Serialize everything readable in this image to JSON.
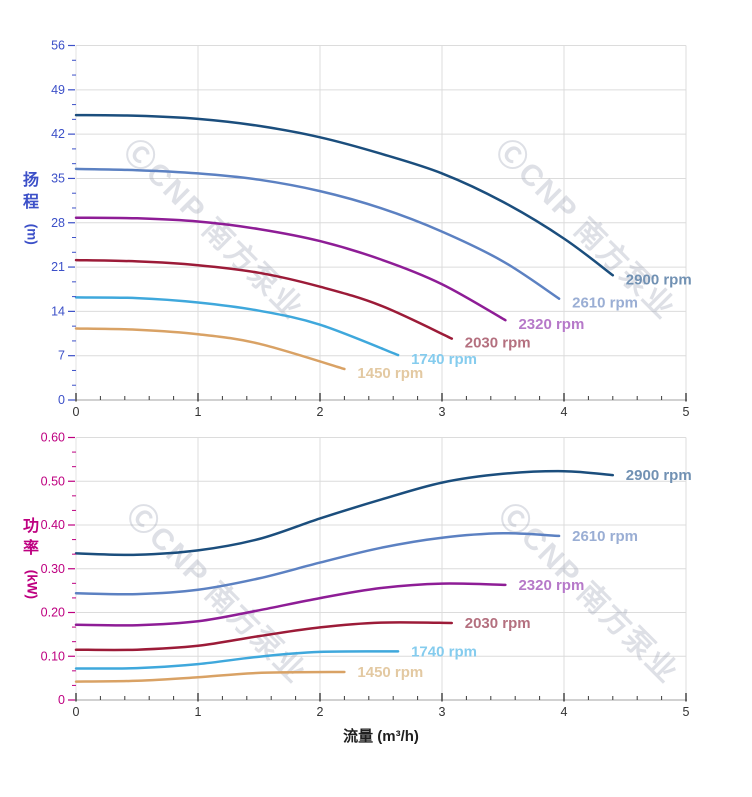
{
  "page": {
    "background": "#ffffff"
  },
  "watermark": {
    "text": "ⒸCNP 南方泵业",
    "color": "rgba(156,162,180,0.33)"
  },
  "x_axis": {
    "title": "流量 (m³/h)",
    "min": 0,
    "max": 5,
    "tick_labels": [
      "0",
      "1",
      "2",
      "3",
      "4",
      "5"
    ],
    "tick_values": [
      0,
      1,
      2,
      3,
      4,
      5
    ],
    "minor_step": 0.2,
    "label_color": "#333333",
    "title_color": "#1f1f1f"
  },
  "chart_data": [
    {
      "type": "line",
      "title": "",
      "ylabel": "扬程 (m)",
      "ylabel_chars": [
        "扬",
        "程"
      ],
      "ylabel_unit": "(m)",
      "xlabel": "流量 (m³/h)",
      "axis_color": "#3c50c8",
      "ylim": [
        0,
        56
      ],
      "ytick_values": [
        0,
        7,
        14,
        21,
        28,
        35,
        42,
        49,
        56
      ],
      "ytick_labels": [
        "0",
        "7",
        "14",
        "21",
        "28",
        "35",
        "42",
        "49",
        "56"
      ],
      "xlim": [
        0,
        5
      ],
      "grid": true,
      "legend_position": "curve-end",
      "series": [
        {
          "name": "2900 rpm",
          "rpm": 2900,
          "color": "#1b4e7d",
          "label_color": "#7191b3",
          "points": [
            [
              0,
              45
            ],
            [
              0.5,
              44.9
            ],
            [
              1,
              44.4
            ],
            [
              1.5,
              43.3
            ],
            [
              2,
              41.5
            ],
            [
              2.5,
              38.9
            ],
            [
              3,
              35.8
            ],
            [
              3.5,
              31.3
            ],
            [
              4,
              25.5
            ],
            [
              4.4,
              19.7
            ]
          ]
        },
        {
          "name": "2610 rpm",
          "rpm": 2610,
          "color": "#5c81c2",
          "label_color": "#9aaed4",
          "points": [
            [
              0,
              36.5
            ],
            [
              0.5,
              36.3
            ],
            [
              1,
              35.8
            ],
            [
              1.5,
              34.8
            ],
            [
              2,
              33.0
            ],
            [
              2.5,
              30.3
            ],
            [
              3,
              26.6
            ],
            [
              3.5,
              21.9
            ],
            [
              3.96,
              16.0
            ]
          ]
        },
        {
          "name": "2320 rpm",
          "rpm": 2320,
          "color": "#8e1d96",
          "label_color": "#b679c9",
          "points": [
            [
              0,
              28.8
            ],
            [
              0.5,
              28.7
            ],
            [
              1,
              28.2
            ],
            [
              1.5,
              27.0
            ],
            [
              2,
              25.1
            ],
            [
              2.5,
              22.2
            ],
            [
              3,
              18.3
            ],
            [
              3.52,
              12.6
            ]
          ]
        },
        {
          "name": "2030 rpm",
          "rpm": 2030,
          "color": "#9c1b38",
          "label_color": "#b4707f",
          "points": [
            [
              0,
              22.1
            ],
            [
              0.5,
              21.9
            ],
            [
              1,
              21.3
            ],
            [
              1.5,
              20.1
            ],
            [
              2,
              17.9
            ],
            [
              2.5,
              14.9
            ],
            [
              3.08,
              9.7
            ]
          ]
        },
        {
          "name": "1740 rpm",
          "rpm": 1740,
          "color": "#3fa8dc",
          "label_color": "#85ccee",
          "points": [
            [
              0,
              16.2
            ],
            [
              0.5,
              16.1
            ],
            [
              1,
              15.4
            ],
            [
              1.5,
              14.1
            ],
            [
              2,
              11.9
            ],
            [
              2.64,
              7.1
            ]
          ]
        },
        {
          "name": "1450 rpm",
          "rpm": 1450,
          "color": "#d9a265",
          "label_color": "#e3c9a2",
          "points": [
            [
              0,
              11.3
            ],
            [
              0.5,
              11.1
            ],
            [
              1,
              10.4
            ],
            [
              1.5,
              8.9
            ],
            [
              2.2,
              4.9
            ]
          ]
        }
      ]
    },
    {
      "type": "line",
      "title": "",
      "ylabel": "功率 (kW)",
      "ylabel_chars": [
        "功",
        "率"
      ],
      "ylabel_unit": "(kW)",
      "xlabel": "流量 (m³/h)",
      "axis_color": "#be0080",
      "ylim": [
        0,
        0.6
      ],
      "ytick_values": [
        0,
        0.1,
        0.2,
        0.3,
        0.4,
        0.5,
        0.6
      ],
      "ytick_labels": [
        "0",
        "0.10",
        "0.20",
        "0.30",
        "0.40",
        "0.50",
        "0.60"
      ],
      "xlim": [
        0,
        5
      ],
      "grid": true,
      "legend_position": "curve-end",
      "series": [
        {
          "name": "2900 rpm",
          "rpm": 2900,
          "color": "#1b4e7d",
          "label_color": "#7191b3",
          "points": [
            [
              0,
              0.335
            ],
            [
              0.5,
              0.332
            ],
            [
              1,
              0.342
            ],
            [
              1.5,
              0.368
            ],
            [
              2,
              0.415
            ],
            [
              2.5,
              0.458
            ],
            [
              3,
              0.497
            ],
            [
              3.5,
              0.517
            ],
            [
              4,
              0.523
            ],
            [
              4.4,
              0.514
            ]
          ]
        },
        {
          "name": "2610 rpm",
          "rpm": 2610,
          "color": "#5c81c2",
          "label_color": "#9aaed4",
          "points": [
            [
              0,
              0.244
            ],
            [
              0.5,
              0.242
            ],
            [
              1,
              0.252
            ],
            [
              1.5,
              0.278
            ],
            [
              2,
              0.314
            ],
            [
              2.5,
              0.348
            ],
            [
              3,
              0.371
            ],
            [
              3.5,
              0.381
            ],
            [
              3.96,
              0.375
            ]
          ]
        },
        {
          "name": "2320 rpm",
          "rpm": 2320,
          "color": "#8e1d96",
          "label_color": "#b679c9",
          "points": [
            [
              0,
              0.172
            ],
            [
              0.5,
              0.171
            ],
            [
              1,
              0.18
            ],
            [
              1.5,
              0.205
            ],
            [
              2,
              0.233
            ],
            [
              2.5,
              0.256
            ],
            [
              3,
              0.266
            ],
            [
              3.52,
              0.263
            ]
          ]
        },
        {
          "name": "2030 rpm",
          "rpm": 2030,
          "color": "#9c1b38",
          "label_color": "#b4707f",
          "points": [
            [
              0,
              0.115
            ],
            [
              0.5,
              0.115
            ],
            [
              1,
              0.124
            ],
            [
              1.5,
              0.146
            ],
            [
              2,
              0.166
            ],
            [
              2.5,
              0.177
            ],
            [
              3.08,
              0.176
            ]
          ]
        },
        {
          "name": "1740 rpm",
          "rpm": 1740,
          "color": "#3fa8dc",
          "label_color": "#85ccee",
          "points": [
            [
              0,
              0.072
            ],
            [
              0.5,
              0.073
            ],
            [
              1,
              0.082
            ],
            [
              1.5,
              0.099
            ],
            [
              2,
              0.11
            ],
            [
              2.64,
              0.111
            ]
          ]
        },
        {
          "name": "1450 rpm",
          "rpm": 1450,
          "color": "#d9a265",
          "label_color": "#e3c9a2",
          "points": [
            [
              0,
              0.042
            ],
            [
              0.5,
              0.044
            ],
            [
              1,
              0.052
            ],
            [
              1.5,
              0.062
            ],
            [
              2.2,
              0.064
            ]
          ]
        }
      ]
    }
  ]
}
